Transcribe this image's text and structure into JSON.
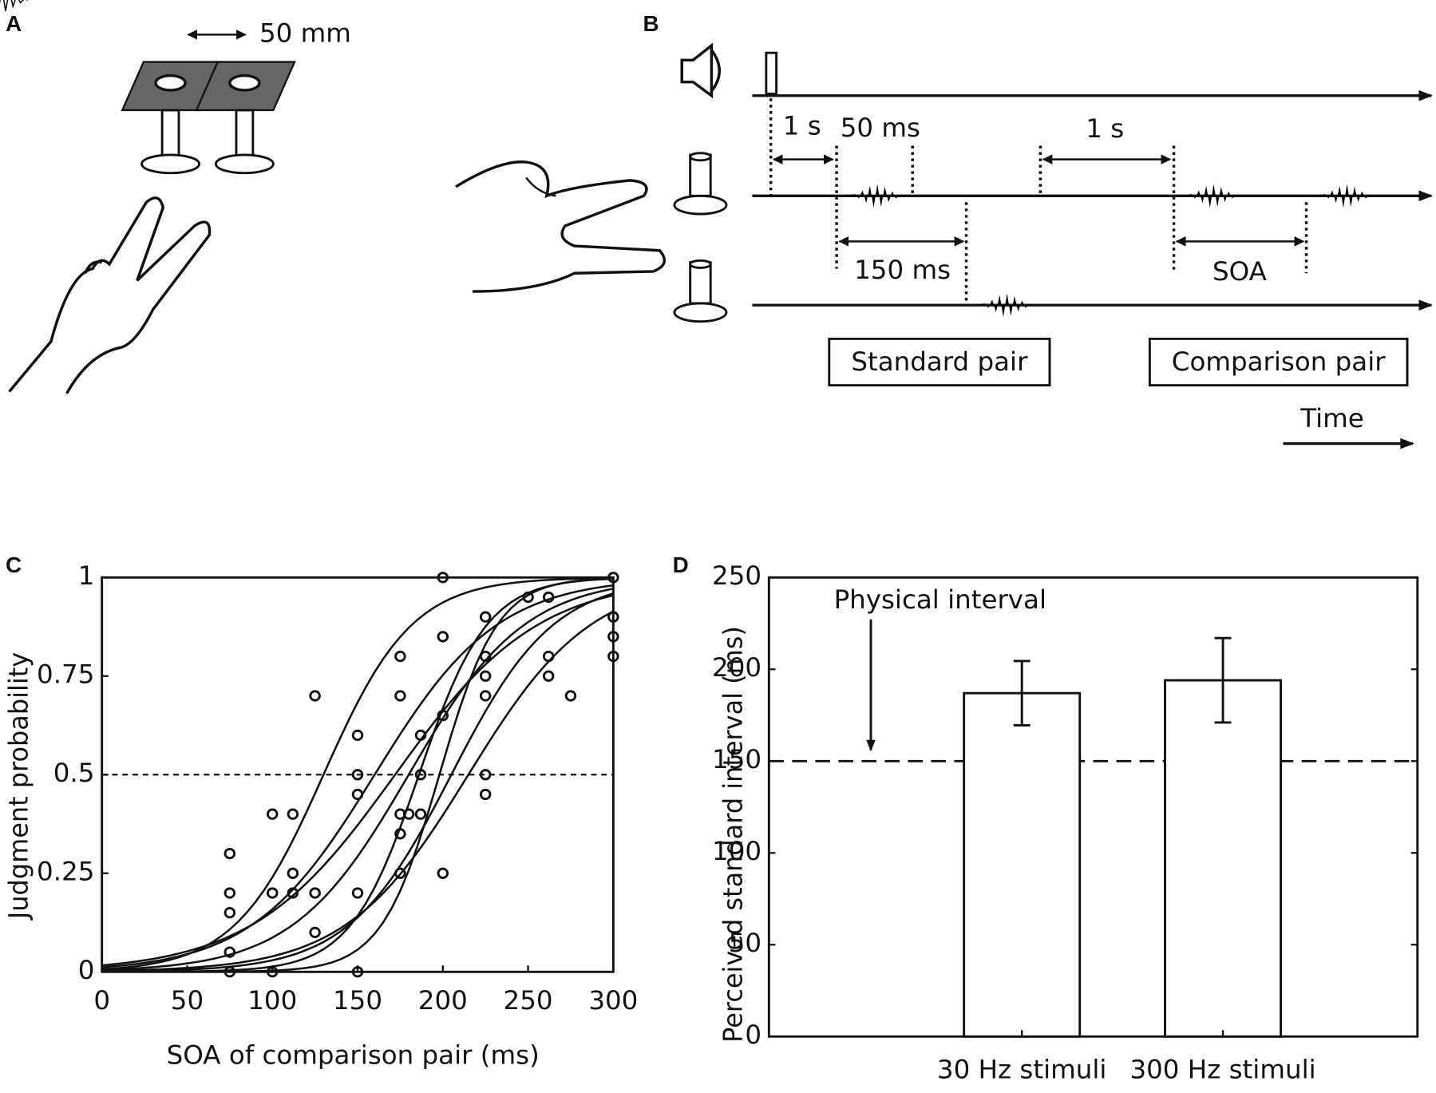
{
  "figure": {
    "labels": [
      "A",
      "B",
      "C",
      "D"
    ],
    "panel_a": {
      "distance": "50 mm"
    },
    "panel_b": {
      "interval_1": "1 s",
      "duration": "50 ms",
      "interval_2": "1 s",
      "standard_interval": "150 ms",
      "soa": "SOA",
      "standard_pair": "Standard pair",
      "comparison_pair": "Comparison pair",
      "time": "Time"
    }
  },
  "chart_data": [
    {
      "type": "scatter",
      "xlabel": "SOA of comparison pair (ms)",
      "ylabel": "Judgment probability",
      "x": [
        75,
        75,
        75,
        75,
        75,
        100,
        100,
        100,
        112,
        112,
        112,
        125,
        125,
        125,
        150,
        150,
        150,
        150,
        150,
        175,
        175,
        175,
        175,
        175,
        180,
        187,
        187,
        187,
        200,
        200,
        200,
        200,
        225,
        225,
        225,
        225,
        225,
        225,
        250,
        262,
        262,
        262,
        275,
        300,
        300,
        300,
        300
      ],
      "values": [
        0.3,
        0.2,
        0.15,
        0.05,
        0,
        0.4,
        0.2,
        0,
        0.4,
        0.25,
        0.2,
        0.7,
        0.2,
        0.1,
        0.6,
        0.5,
        0.45,
        0.2,
        0,
        0.8,
        0.7,
        0.4,
        0.35,
        0.25,
        0.4,
        0.6,
        0.5,
        0.4,
        1,
        0.85,
        0.65,
        0.25,
        0.9,
        0.8,
        0.75,
        0.7,
        0.5,
        0.45,
        0.95,
        0.95,
        0.8,
        0.75,
        0.7,
        1,
        0.9,
        0.85,
        0.8
      ],
      "xlim": [
        0,
        300
      ],
      "xticks": [
        0,
        50,
        100,
        150,
        200,
        250,
        300
      ],
      "ylim": [
        0,
        1
      ],
      "yticks": [
        0,
        0.25,
        0.5,
        0.75,
        1
      ],
      "reference_line": 0.5,
      "color": "#111111"
    },
    {
      "type": "bar",
      "ylabel": "Perceived standard interval (ms)",
      "categories": [
        "30 Hz stimuli",
        "300 Hz stimuli"
      ],
      "values": [
        187,
        194
      ],
      "errors": [
        17.5,
        23
      ],
      "ylim": [
        0,
        250
      ],
      "yticks": [
        0,
        50,
        100,
        150,
        200,
        250
      ],
      "reference_line": 150,
      "annotation": "Physical interval",
      "color": "#ffffff"
    }
  ]
}
